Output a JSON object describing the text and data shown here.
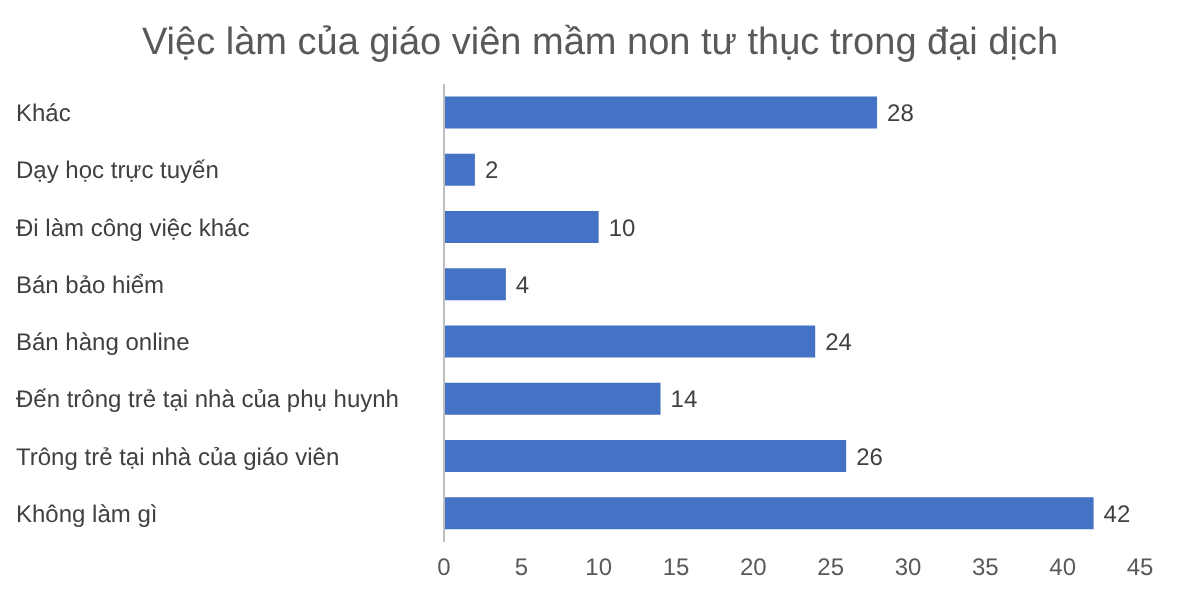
{
  "chart_data": {
    "type": "bar",
    "orientation": "horizontal",
    "title": "Việc làm của giáo viên mầm non tư thục trong đại dịch",
    "categories": [
      "Khác",
      "Dạy học trực tuyến",
      "Đi làm công việc khác",
      "Bán bảo hiểm",
      "Bán hàng online",
      "Đến trông trẻ tại nhà của phụ huynh",
      "Trông trẻ tại nhà của giáo viên",
      "Không làm gì"
    ],
    "values": [
      28,
      2,
      10,
      4,
      24,
      14,
      26,
      42
    ],
    "color": "#4472c4",
    "xlim": [
      0,
      45
    ],
    "xticks": [
      0,
      5,
      10,
      15,
      20,
      25,
      30,
      35,
      40,
      45
    ],
    "data_labels": true
  }
}
